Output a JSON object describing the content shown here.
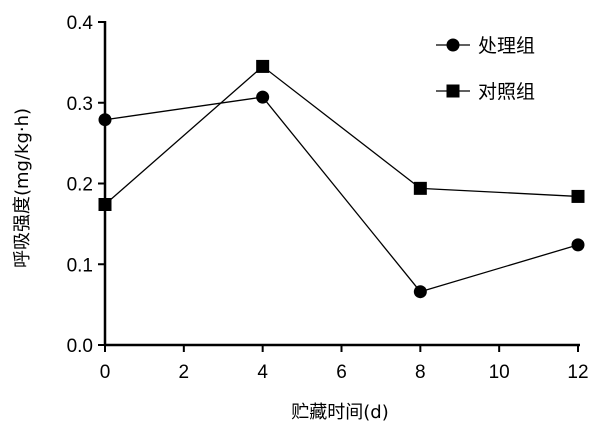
{
  "chart_data": {
    "type": "line",
    "xlabel": "贮藏时间(d)",
    "ylabel": "呼吸强度(mg/kg·h)",
    "xlim": [
      0,
      12
    ],
    "ylim": [
      0.0,
      0.4
    ],
    "x_ticks": [
      "0",
      "2",
      "4",
      "6",
      "8",
      "10",
      "12"
    ],
    "y_ticks": [
      "0.0",
      "0.1",
      "0.2",
      "0.3",
      "0.4"
    ],
    "legend_position": "top-right",
    "grid": false,
    "series": [
      {
        "name": "处理组",
        "marker": "circle",
        "color": "#000000",
        "x": [
          0,
          4,
          8,
          12
        ],
        "values": [
          0.279,
          0.307,
          0.066,
          0.124
        ]
      },
      {
        "name": "对照组",
        "marker": "square",
        "color": "#000000",
        "x": [
          0,
          4,
          8,
          12
        ],
        "values": [
          0.174,
          0.345,
          0.194,
          0.184
        ]
      }
    ]
  }
}
